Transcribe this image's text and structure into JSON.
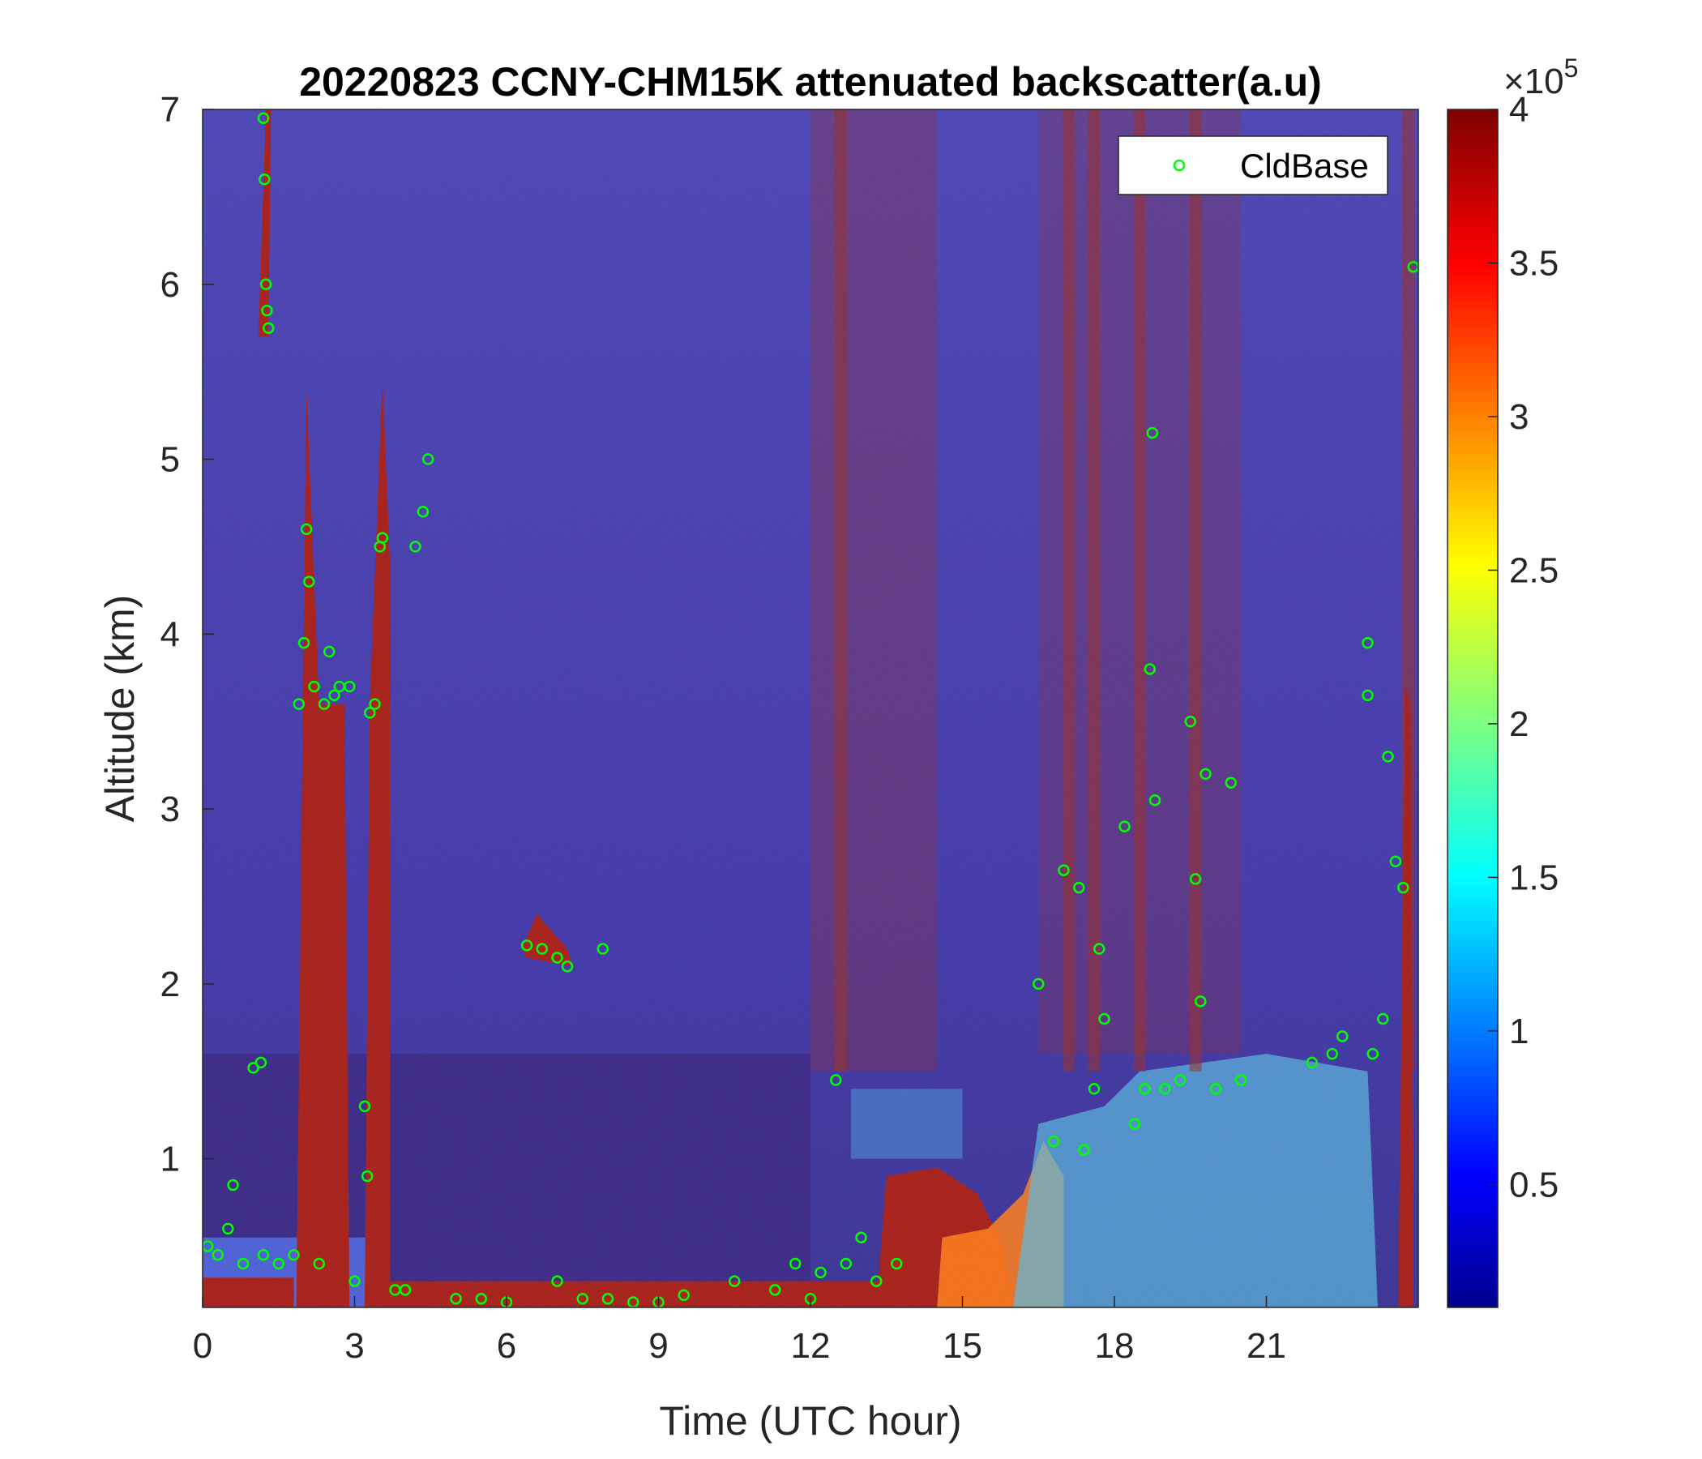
{
  "chart_data": {
    "type": "heatmap",
    "title": "20220823 CCNY-CHM15K attenuated backscatter(a.u)",
    "xlabel": "Time (UTC hour)",
    "ylabel": "Altitude (km)",
    "xlim": [
      0,
      24
    ],
    "ylim": [
      0.15,
      7
    ],
    "xticks": [
      0,
      3,
      6,
      9,
      12,
      15,
      18,
      21
    ],
    "yticks": [
      1,
      2,
      3,
      4,
      5,
      6,
      7
    ],
    "colorbar": {
      "colormap": "jet",
      "clim": [
        10000,
        400000
      ],
      "ticks": [
        0.5,
        1,
        1.5,
        2,
        2.5,
        3,
        3.5,
        4
      ],
      "exponent_label": "×10",
      "exponent_power": "5"
    },
    "legend": {
      "location": "top-right",
      "entries": [
        "CldBase"
      ]
    },
    "marker_color": "#00ff00",
    "cloud_base": [
      {
        "x": 0.1,
        "y": 0.5
      },
      {
        "x": 0.3,
        "y": 0.45
      },
      {
        "x": 0.5,
        "y": 0.6
      },
      {
        "x": 0.6,
        "y": 0.85
      },
      {
        "x": 0.8,
        "y": 0.4
      },
      {
        "x": 1.0,
        "y": 1.52
      },
      {
        "x": 1.15,
        "y": 1.55
      },
      {
        "x": 1.2,
        "y": 0.45
      },
      {
        "x": 1.2,
        "y": 6.95
      },
      {
        "x": 1.22,
        "y": 6.6
      },
      {
        "x": 1.25,
        "y": 6.0
      },
      {
        "x": 1.27,
        "y": 5.85
      },
      {
        "x": 1.3,
        "y": 5.75
      },
      {
        "x": 1.5,
        "y": 0.4
      },
      {
        "x": 1.8,
        "y": 0.45
      },
      {
        "x": 1.9,
        "y": 3.6
      },
      {
        "x": 2.0,
        "y": 3.95
      },
      {
        "x": 2.05,
        "y": 4.6
      },
      {
        "x": 2.1,
        "y": 4.3
      },
      {
        "x": 2.2,
        "y": 3.7
      },
      {
        "x": 2.3,
        "y": 0.4
      },
      {
        "x": 2.4,
        "y": 3.6
      },
      {
        "x": 2.5,
        "y": 3.9
      },
      {
        "x": 2.6,
        "y": 3.65
      },
      {
        "x": 2.7,
        "y": 3.7
      },
      {
        "x": 2.9,
        "y": 3.7
      },
      {
        "x": 3.0,
        "y": 0.3
      },
      {
        "x": 3.2,
        "y": 1.3
      },
      {
        "x": 3.25,
        "y": 0.9
      },
      {
        "x": 3.3,
        "y": 3.55
      },
      {
        "x": 3.4,
        "y": 3.6
      },
      {
        "x": 3.5,
        "y": 4.5
      },
      {
        "x": 3.55,
        "y": 4.55
      },
      {
        "x": 3.8,
        "y": 0.25
      },
      {
        "x": 4.0,
        "y": 0.25
      },
      {
        "x": 4.2,
        "y": 4.5
      },
      {
        "x": 4.35,
        "y": 4.7
      },
      {
        "x": 4.45,
        "y": 5.0
      },
      {
        "x": 5.0,
        "y": 0.2
      },
      {
        "x": 5.5,
        "y": 0.2
      },
      {
        "x": 6.0,
        "y": 0.18
      },
      {
        "x": 6.4,
        "y": 2.22
      },
      {
        "x": 6.7,
        "y": 2.2
      },
      {
        "x": 7.0,
        "y": 2.15
      },
      {
        "x": 7.2,
        "y": 2.1
      },
      {
        "x": 7.0,
        "y": 0.3
      },
      {
        "x": 7.5,
        "y": 0.2
      },
      {
        "x": 7.9,
        "y": 2.2
      },
      {
        "x": 8.0,
        "y": 0.2
      },
      {
        "x": 8.5,
        "y": 0.18
      },
      {
        "x": 9.0,
        "y": 0.18
      },
      {
        "x": 9.5,
        "y": 0.22
      },
      {
        "x": 10.5,
        "y": 0.3
      },
      {
        "x": 11.3,
        "y": 0.25
      },
      {
        "x": 11.7,
        "y": 0.4
      },
      {
        "x": 12.0,
        "y": 0.2
      },
      {
        "x": 12.2,
        "y": 0.35
      },
      {
        "x": 12.5,
        "y": 1.45
      },
      {
        "x": 12.7,
        "y": 0.4
      },
      {
        "x": 13.0,
        "y": 0.55
      },
      {
        "x": 13.3,
        "y": 0.3
      },
      {
        "x": 13.7,
        "y": 0.4
      },
      {
        "x": 16.5,
        "y": 2.0
      },
      {
        "x": 16.8,
        "y": 1.1
      },
      {
        "x": 17.0,
        "y": 2.65
      },
      {
        "x": 17.3,
        "y": 2.55
      },
      {
        "x": 17.4,
        "y": 1.05
      },
      {
        "x": 17.6,
        "y": 1.4
      },
      {
        "x": 17.7,
        "y": 2.2
      },
      {
        "x": 17.8,
        "y": 1.8
      },
      {
        "x": 18.2,
        "y": 2.9
      },
      {
        "x": 18.4,
        "y": 1.2
      },
      {
        "x": 18.6,
        "y": 1.4
      },
      {
        "x": 18.7,
        "y": 3.8
      },
      {
        "x": 18.75,
        "y": 5.15
      },
      {
        "x": 18.8,
        "y": 3.05
      },
      {
        "x": 19.0,
        "y": 1.4
      },
      {
        "x": 19.3,
        "y": 1.45
      },
      {
        "x": 19.5,
        "y": 3.5
      },
      {
        "x": 19.6,
        "y": 2.6
      },
      {
        "x": 19.7,
        "y": 1.9
      },
      {
        "x": 19.8,
        "y": 3.2
      },
      {
        "x": 20.0,
        "y": 1.4
      },
      {
        "x": 20.3,
        "y": 3.15
      },
      {
        "x": 20.5,
        "y": 1.45
      },
      {
        "x": 21.9,
        "y": 1.55
      },
      {
        "x": 22.3,
        "y": 1.6
      },
      {
        "x": 22.5,
        "y": 1.7
      },
      {
        "x": 23.0,
        "y": 3.95
      },
      {
        "x": 23.0,
        "y": 3.65
      },
      {
        "x": 23.1,
        "y": 1.6
      },
      {
        "x": 23.3,
        "y": 1.8
      },
      {
        "x": 23.4,
        "y": 3.3
      },
      {
        "x": 23.55,
        "y": 2.7
      },
      {
        "x": 23.7,
        "y": 2.55
      },
      {
        "x": 23.9,
        "y": 6.1
      }
    ]
  }
}
